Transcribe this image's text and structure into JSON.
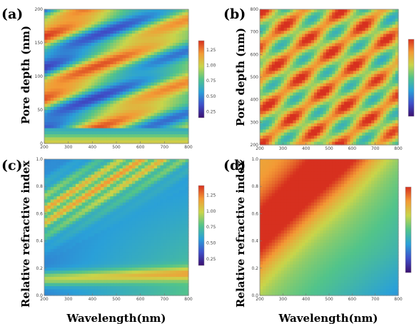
{
  "figure": {
    "xlabel_left": "Wavelength(nm)",
    "xlabel_right": "Wavelength(nm)"
  },
  "chart_data": [
    {
      "type": "heatmap",
      "panel": "(a)",
      "xlabel": "",
      "ylabel": "Pore depth (nm)",
      "xlim": [
        200,
        800
      ],
      "ylim": [
        0,
        200
      ],
      "x_ticks": [
        "200",
        "300",
        "400",
        "500",
        "600",
        "700",
        "800"
      ],
      "y_ticks": [
        "0",
        "50",
        "100",
        "150",
        "200"
      ],
      "y_tick_values": [
        0,
        50,
        100,
        150,
        200
      ],
      "colorbar": {
        "ticks": [
          "1.25",
          "1.00",
          "0.75",
          "0.50",
          "0.25"
        ],
        "tick_values": [
          1.25,
          1.0,
          0.75,
          0.5,
          0.25
        ],
        "range": [
          0.15,
          1.4
        ]
      },
      "colormap": [
        "#3b0f70",
        "#3f4fc9",
        "#2aa0d8",
        "#52c48a",
        "#c9d54a",
        "#f39a35",
        "#d7301f"
      ],
      "pattern": "diagonal-fringes"
    },
    {
      "type": "heatmap",
      "panel": "(b)",
      "xlabel": "",
      "ylabel": "Pore depth (nm)",
      "xlim": [
        200,
        800
      ],
      "ylim": [
        200,
        800
      ],
      "x_ticks": [
        "200",
        "300",
        "400",
        "500",
        "600",
        "700",
        "800"
      ],
      "y_ticks": [
        "200",
        "300",
        "400",
        "500",
        "600",
        "700",
        "800"
      ],
      "y_tick_values": [
        200,
        300,
        400,
        500,
        600,
        700,
        800
      ],
      "colorbar": {
        "ticks": [],
        "tick_values": [],
        "range": [
          0,
          1
        ]
      },
      "colormap": [
        "#3b0f70",
        "#3f4fc9",
        "#2aa0d8",
        "#52c48a",
        "#c9d54a",
        "#f39a35",
        "#d7301f"
      ],
      "pattern": "dense-fringes"
    },
    {
      "type": "heatmap",
      "panel": "(c)",
      "xlabel": "Wavelength(nm)",
      "ylabel": "Relative refractive index",
      "xlim": [
        200,
        800
      ],
      "ylim": [
        0,
        1
      ],
      "x_ticks": [
        "200",
        "300",
        "400",
        "500",
        "600",
        "700",
        "800"
      ],
      "y_ticks": [
        "0.0",
        "0.2",
        "0.4",
        "0.6",
        "0.8",
        "1.0"
      ],
      "y_tick_values": [
        0,
        0.2,
        0.4,
        0.6,
        0.8,
        1.0
      ],
      "colorbar": {
        "ticks": [
          "1.25",
          "1.00",
          "0.75",
          "0.50",
          "0.25"
        ],
        "tick_values": [
          1.25,
          1.0,
          0.75,
          0.5,
          0.25
        ],
        "range": [
          0.15,
          1.4
        ]
      },
      "colormap": [
        "#3b0f70",
        "#3f4fc9",
        "#2aa0d8",
        "#52c48a",
        "#c9d54a",
        "#f39a35",
        "#d7301f"
      ],
      "pattern": "fan-low"
    },
    {
      "type": "heatmap",
      "panel": "(d)",
      "xlabel": "Wavelength(nm)",
      "ylabel": "Relative refractive index",
      "xlim": [
        200,
        800
      ],
      "ylim": [
        0,
        1
      ],
      "x_ticks": [
        "200",
        "300",
        "400",
        "500",
        "600",
        "700",
        "800"
      ],
      "y_ticks": [
        "0.0",
        "0.2",
        "0.4",
        "0.6",
        "0.8",
        "1.0"
      ],
      "y_tick_values": [
        0,
        0.2,
        0.4,
        0.6,
        0.8,
        1.0
      ],
      "colorbar": {
        "ticks": [],
        "tick_values": [],
        "range": [
          0,
          1
        ]
      },
      "colormap": [
        "#3b0f70",
        "#3f4fc9",
        "#2aa0d8",
        "#52c48a",
        "#c9d54a",
        "#f39a35",
        "#d7301f"
      ],
      "pattern": "fan-high"
    }
  ]
}
